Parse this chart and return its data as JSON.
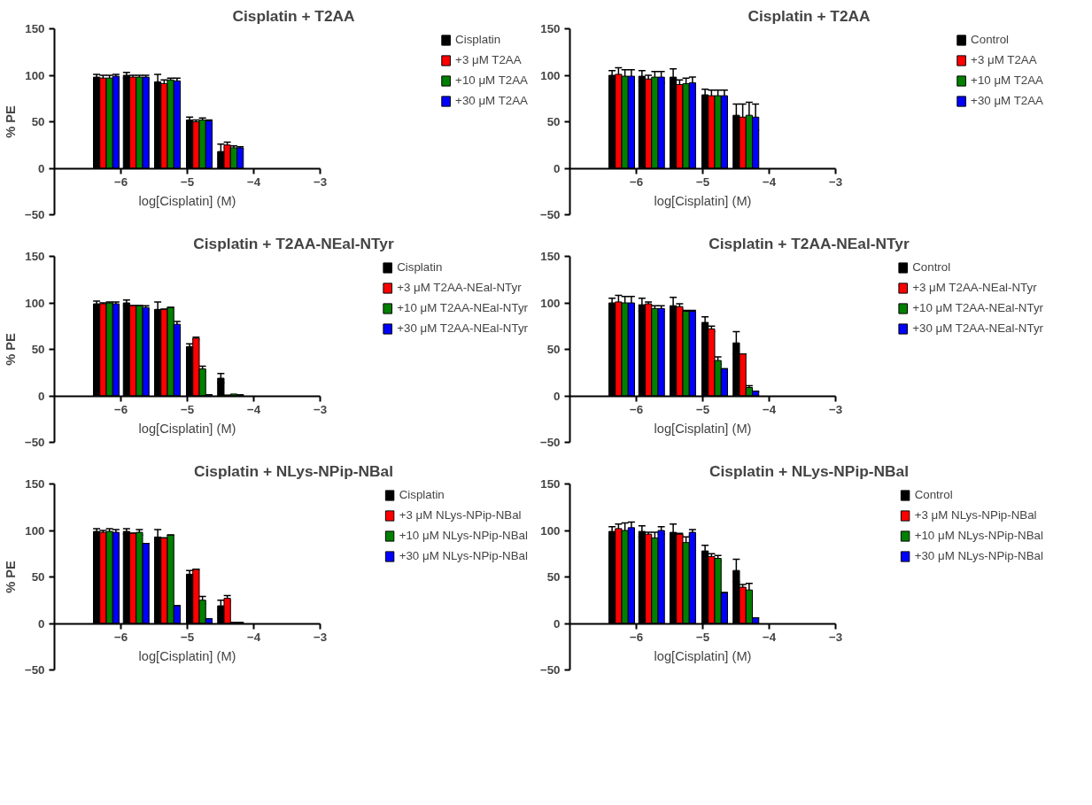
{
  "chart_data": [
    {
      "type": "bar",
      "title": "Cisplatin + T2AA",
      "xlabel": "log[Cisplatin] (M)",
      "ylabel": "% PE",
      "x": [
        -6.22,
        -5.77,
        -5.3,
        -4.82,
        -4.35
      ],
      "xlim": [
        -7,
        -3
      ],
      "xticks": [
        -6,
        -5,
        -4,
        -3
      ],
      "ylim": [
        -50,
        150
      ],
      "yticks": [
        -50,
        0,
        50,
        100,
        150
      ],
      "grid": false,
      "legend": "right",
      "series": [
        {
          "name": "Cisplatin",
          "color": "#000000",
          "values": [
            98,
            100,
            93,
            52,
            18
          ],
          "errors": [
            3,
            3,
            8,
            3,
            8
          ]
        },
        {
          "name": "+3 μM T2AA",
          "color": "#ff0000",
          "values": [
            97,
            98,
            91,
            50,
            25
          ],
          "errors": [
            3,
            2,
            4,
            2,
            3
          ]
        },
        {
          "name": "+10 μM T2AA",
          "color": "#008000",
          "values": [
            97,
            98,
            95,
            52,
            22
          ],
          "errors": [
            3,
            2,
            2,
            2,
            2
          ]
        },
        {
          "name": "+30 μM T2AA",
          "color": "#0000ff",
          "values": [
            99,
            98,
            94,
            51,
            22
          ],
          "errors": [
            2,
            2,
            3,
            1,
            1
          ]
        }
      ]
    },
    {
      "type": "bar",
      "title": "Cisplatin + T2AA",
      "xlabel": "log[Cisplatin] (M)",
      "x": [
        -6.22,
        -5.77,
        -5.3,
        -4.82,
        -4.35
      ],
      "xlim": [
        -7,
        -3
      ],
      "xticks": [
        -6,
        -5,
        -4,
        -3
      ],
      "ylim": [
        -50,
        150
      ],
      "yticks": [
        -50,
        0,
        50,
        100,
        150
      ],
      "grid": false,
      "legend": "right",
      "series": [
        {
          "name": "Control",
          "color": "#000000",
          "values": [
            100,
            99,
            98,
            79,
            57
          ],
          "errors": [
            5,
            6,
            9,
            6,
            12
          ]
        },
        {
          "name": "+3 μM T2AA",
          "color": "#ff0000",
          "values": [
            101,
            96,
            90,
            78,
            55
          ],
          "errors": [
            7,
            4,
            5,
            6,
            14
          ]
        },
        {
          "name": "+10 μM T2AA",
          "color": "#008000",
          "values": [
            99,
            98,
            91,
            78,
            57
          ],
          "errors": [
            7,
            6,
            6,
            6,
            14
          ]
        },
        {
          "name": "+30 μM T2AA",
          "color": "#0000ff",
          "values": [
            99,
            98,
            92,
            78,
            55
          ],
          "errors": [
            7,
            6,
            6,
            6,
            14
          ]
        }
      ]
    },
    {
      "type": "bar",
      "title": "Cisplatin + T2AA-NEal-NTyr",
      "xlabel": "log[Cisplatin] (M)",
      "ylabel": "% PE",
      "x": [
        -6.22,
        -5.77,
        -5.3,
        -4.82,
        -4.35
      ],
      "xlim": [
        -7,
        -3
      ],
      "xticks": [
        -6,
        -5,
        -4,
        -3
      ],
      "ylim": [
        -50,
        150
      ],
      "yticks": [
        -50,
        0,
        50,
        100,
        150
      ],
      "grid": false,
      "legend": "right",
      "series": [
        {
          "name": "Cisplatin",
          "color": "#000000",
          "values": [
            99,
            100,
            93,
            53,
            19
          ],
          "errors": [
            3,
            3,
            8,
            3,
            5
          ]
        },
        {
          "name": "+3 μM T2AA-NEal-NTyr",
          "color": "#ff0000",
          "values": [
            99,
            97,
            93,
            62,
            1
          ],
          "errors": [
            1,
            0,
            0,
            1,
            null
          ]
        },
        {
          "name": "+10 μM T2AA-NEal-NTyr",
          "color": "#008000",
          "values": [
            100,
            97,
            95,
            29,
            2
          ],
          "errors": [
            1,
            0,
            0,
            3,
            null
          ]
        },
        {
          "name": "+30 μM T2AA-NEal-NTyr",
          "color": "#0000ff",
          "values": [
            99,
            95,
            77,
            1,
            1
          ],
          "errors": [
            2,
            2,
            3,
            0,
            0
          ]
        }
      ]
    },
    {
      "type": "bar",
      "title": "Cisplatin + T2AA-NEal-NTyr",
      "xlabel": "log[Cisplatin] (M)",
      "x": [
        -6.22,
        -5.77,
        -5.3,
        -4.82,
        -4.35
      ],
      "xlim": [
        -7,
        -3
      ],
      "xticks": [
        -6,
        -5,
        -4,
        -3
      ],
      "ylim": [
        -50,
        150
      ],
      "yticks": [
        -50,
        0,
        50,
        100,
        150
      ],
      "grid": false,
      "legend": "right",
      "series": [
        {
          "name": "Control",
          "color": "#000000",
          "values": [
            100,
            98,
            97,
            79,
            57
          ],
          "errors": [
            5,
            7,
            9,
            6,
            12
          ]
        },
        {
          "name": "+3 μM T2AA-NEal-NTyr",
          "color": "#ff0000",
          "values": [
            101,
            99,
            96,
            72,
            45
          ],
          "errors": [
            7,
            2,
            3,
            3,
            0
          ]
        },
        {
          "name": "+10 μM T2AA-NEal-NTyr",
          "color": "#008000",
          "values": [
            100,
            94,
            91,
            38,
            9
          ],
          "errors": [
            7,
            3,
            1,
            4,
            2
          ]
        },
        {
          "name": "+30 μM T2AA-NEal-NTyr",
          "color": "#0000ff",
          "values": [
            100,
            94,
            91,
            29,
            5
          ],
          "errors": [
            7,
            3,
            1,
            0,
            0
          ]
        }
      ]
    },
    {
      "type": "bar",
      "title": "Cisplatin + NLys-NPip-NBal",
      "xlabel": "log[Cisplatin] (M)",
      "ylabel": "% PE",
      "x": [
        -6.22,
        -5.77,
        -5.3,
        -4.82,
        -4.35
      ],
      "xlim": [
        -7,
        -3
      ],
      "xticks": [
        -6,
        -5,
        -4,
        -3
      ],
      "ylim": [
        -50,
        150
      ],
      "yticks": [
        -50,
        0,
        50,
        100,
        150
      ],
      "grid": false,
      "legend": "right",
      "series": [
        {
          "name": "Cisplatin",
          "color": "#000000",
          "values": [
            99,
            99,
            93,
            53,
            19
          ],
          "errors": [
            3,
            3,
            8,
            4,
            6
          ]
        },
        {
          "name": "+3 μM NLys-NPip-NBal",
          "color": "#ff0000",
          "values": [
            98,
            97,
            92,
            58,
            27
          ],
          "errors": [
            2,
            0,
            0,
            0,
            3
          ]
        },
        {
          "name": "+10 μM NLys-NPip-NBal",
          "color": "#008000",
          "values": [
            99,
            98,
            95,
            25,
            1
          ],
          "errors": [
            3,
            3,
            0,
            4,
            0
          ]
        },
        {
          "name": "+30 μM NLys-NPip-NBal",
          "color": "#0000ff",
          "values": [
            98,
            86,
            19,
            5,
            1
          ],
          "errors": [
            3,
            0,
            0,
            0,
            0
          ]
        }
      ]
    },
    {
      "type": "bar",
      "title": "Cisplatin + NLys-NPip-NBal",
      "xlabel": "log[Cisplatin] (M)",
      "x": [
        -6.22,
        -5.77,
        -5.3,
        -4.82,
        -4.35
      ],
      "xlim": [
        -7,
        -3
      ],
      "xticks": [
        -6,
        -5,
        -4,
        -3
      ],
      "ylim": [
        -50,
        150
      ],
      "yticks": [
        -50,
        0,
        50,
        100,
        150
      ],
      "grid": false,
      "legend": "right",
      "series": [
        {
          "name": "Control",
          "color": "#000000",
          "values": [
            99,
            99,
            98,
            78,
            57
          ],
          "errors": [
            5,
            6,
            9,
            6,
            12
          ]
        },
        {
          "name": "+3 μM NLys-NPip-NBal",
          "color": "#ff0000",
          "values": [
            102,
            96,
            96,
            72,
            39
          ],
          "errors": [
            5,
            2,
            1,
            3,
            3
          ]
        },
        {
          "name": "+10 μM NLys-NPip-NBal",
          "color": "#008000",
          "values": [
            100,
            92,
            87,
            70,
            36
          ],
          "errors": [
            8,
            6,
            6,
            3,
            7
          ]
        },
        {
          "name": "+30 μM NLys-NPip-NBal",
          "color": "#0000ff",
          "values": [
            103,
            100,
            98,
            33,
            6
          ],
          "errors": [
            6,
            4,
            3,
            0,
            0
          ]
        }
      ]
    }
  ]
}
